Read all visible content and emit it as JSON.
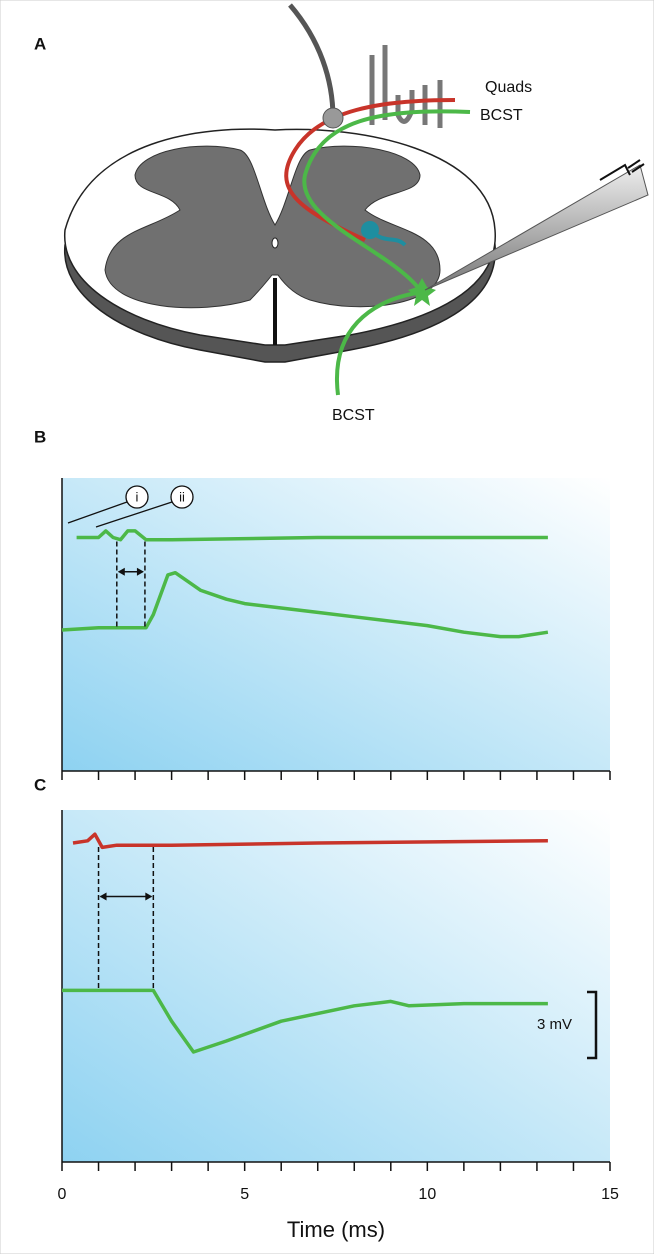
{
  "panel_a": {
    "label": "A",
    "labels": [
      "Quads",
      "BCST",
      "BCST"
    ]
  },
  "chart_data": [
    {
      "type": "line",
      "panel": "B",
      "xlim": [
        0,
        15
      ],
      "ylim": [
        0,
        13.3
      ],
      "minor_xticks": [
        0,
        1,
        2,
        3,
        4,
        5,
        6,
        7,
        8,
        9,
        10,
        11,
        12,
        13,
        14,
        15
      ],
      "series": [
        {
          "color": "#4cb848",
          "x": [
            0.4,
            1.0,
            1.2,
            1.4,
            1.6,
            1.8,
            2.0,
            2.3,
            3.0,
            7.0,
            13.3
          ],
          "values": [
            10.6,
            10.6,
            10.9,
            10.6,
            10.5,
            10.9,
            10.9,
            10.5,
            10.5,
            10.6,
            10.6
          ]
        },
        {
          "color": "#4cb848",
          "x": [
            0,
            1.0,
            2.3,
            2.5,
            2.9,
            3.1,
            3.8,
            4.5,
            5,
            6,
            7,
            8,
            9,
            10,
            11,
            12,
            12.5,
            13.3
          ],
          "values": [
            6.4,
            6.5,
            6.5,
            7.1,
            8.9,
            9.0,
            8.2,
            7.8,
            7.6,
            7.4,
            7.2,
            7.0,
            6.8,
            6.6,
            6.3,
            6.1,
            6.1,
            6.3
          ]
        }
      ],
      "markers": [
        1.5,
        2.27
      ],
      "callouts": [
        "i",
        "ii"
      ]
    },
    {
      "type": "line",
      "panel": "C",
      "xlim": [
        0,
        15
      ],
      "ylim": [
        0,
        16
      ],
      "xticks": [
        0,
        5,
        10,
        15
      ],
      "minor_xticks": [
        0,
        1,
        2,
        3,
        4,
        5,
        6,
        7,
        8,
        9,
        10,
        11,
        12,
        13,
        14,
        15
      ],
      "x_label": "Time (ms)",
      "series": [
        {
          "color": "#c8342a",
          "x": [
            0.3,
            0.7,
            0.9,
            1.1,
            1.5,
            3,
            7,
            13.3
          ],
          "values": [
            14.5,
            14.6,
            14.9,
            14.3,
            14.4,
            14.4,
            14.5,
            14.6
          ]
        },
        {
          "color": "#4cb848",
          "x": [
            0,
            1,
            2.5,
            3.0,
            3.6,
            4.5,
            6,
            8,
            9,
            9.5,
            11,
            13.3
          ],
          "values": [
            7.8,
            7.8,
            7.8,
            6.4,
            5.0,
            5.5,
            6.4,
            7.1,
            7.3,
            7.1,
            7.2,
            7.2
          ]
        }
      ],
      "markers": [
        1.0,
        2.5
      ],
      "scale_bar": {
        "value": 3,
        "label": "3 mV"
      }
    }
  ]
}
